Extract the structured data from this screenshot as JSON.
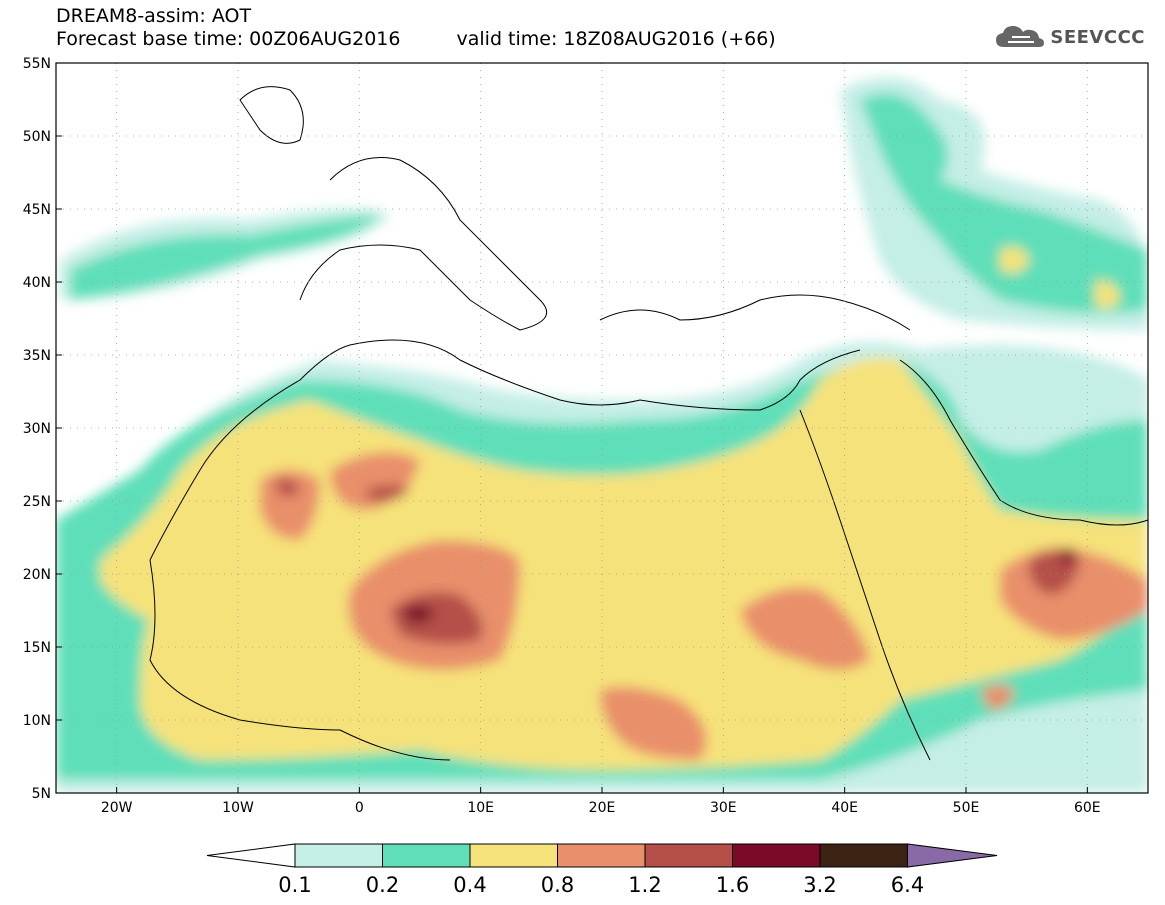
{
  "title": {
    "line1": "DREAM8-assim: AOT",
    "base_time": "Forecast base time: 00Z06AUG2016",
    "valid_time": "valid time: 18Z08AUG2016 (+66)"
  },
  "logo": {
    "text": "SEEVCCC",
    "icon": "cloud-icon"
  },
  "map": {
    "lat_labels": [
      "55N",
      "50N",
      "45N",
      "40N",
      "35N",
      "30N",
      "25N",
      "20N",
      "15N",
      "10N",
      "5N"
    ],
    "lon_labels": [
      "20W",
      "10W",
      "0",
      "10E",
      "20E",
      "30E",
      "40E",
      "50E",
      "60E"
    ],
    "lat_range": [
      5,
      55
    ],
    "lon_range": [
      -25,
      65
    ]
  },
  "colorbar": {
    "levels": [
      "0.1",
      "0.2",
      "0.4",
      "0.8",
      "1.2",
      "1.6",
      "3.2",
      "6.4"
    ],
    "colors": [
      "#ffffff",
      "#c4eee6",
      "#5fdfb9",
      "#f6e27a",
      "#e98f6b",
      "#b45049",
      "#7a0a28",
      "#3b2212",
      "#8a6aa6"
    ]
  }
}
